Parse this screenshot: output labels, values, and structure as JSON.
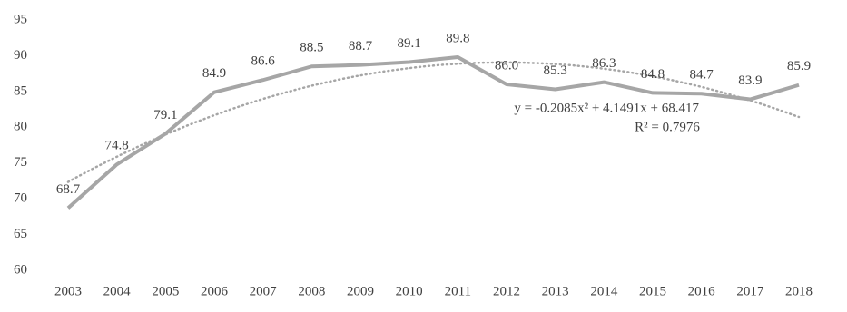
{
  "chart_data": {
    "type": "line",
    "x": [
      2003,
      2004,
      2005,
      2006,
      2007,
      2008,
      2009,
      2010,
      2011,
      2012,
      2013,
      2014,
      2015,
      2016,
      2017,
      2018
    ],
    "values": [
      68.7,
      74.8,
      79.1,
      84.9,
      86.6,
      88.5,
      88.7,
      89.1,
      89.8,
      86.0,
      85.3,
      86.3,
      84.8,
      84.7,
      83.9,
      85.9
    ],
    "value_labels": [
      "68.7",
      "74.8",
      "79.1",
      "84.9",
      "86.6",
      "88.5",
      "88.7",
      "89.1",
      "89.8",
      "86.0",
      "85.3",
      "86.3",
      "84.8",
      "84.7",
      "83.9",
      "85.9"
    ],
    "color": "#a6a6a6",
    "ylim": [
      60,
      95
    ],
    "yticks": [
      60,
      65,
      70,
      75,
      80,
      85,
      90,
      95
    ],
    "grid": false,
    "trendline": {
      "equation": "y = -0.2085x² + 4.1491x + 68.417",
      "r_squared": "R² = 0.7976",
      "coefficients": [
        -0.2085,
        4.1491,
        68.417
      ],
      "color": "#a6a6a6"
    }
  }
}
